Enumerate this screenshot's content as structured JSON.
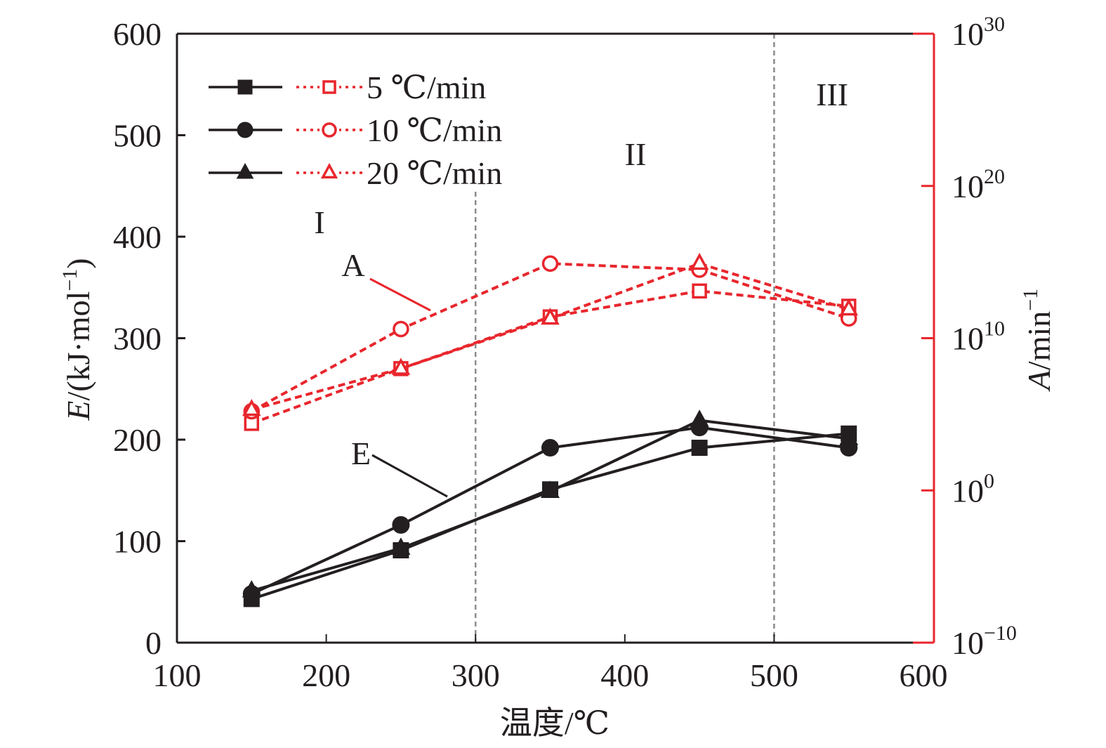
{
  "chart_data": {
    "type": "line",
    "title": "",
    "xlabel": "温度/℃",
    "ylabel": "E/(kJ·mol⁻¹)",
    "ylabel_right": "A/min⁻¹",
    "xlim": [
      100,
      600
    ],
    "ylim": [
      0,
      600
    ],
    "ylim_right_log10": [
      -10,
      30
    ],
    "x_ticks": [
      100,
      200,
      300,
      400,
      500,
      600
    ],
    "x_tick_labels": [
      "100",
      "200",
      "300",
      "400",
      "500",
      "600"
    ],
    "y_ticks": [
      0,
      100,
      200,
      300,
      400,
      500,
      600
    ],
    "y_tick_labels": [
      "0",
      "100",
      "200",
      "300",
      "400",
      "500",
      "600"
    ],
    "y_right_ticks_log10": [
      -10,
      0,
      10,
      20,
      30
    ],
    "y_right_tick_labels": [
      {
        "base": "10",
        "exp": "−10"
      },
      {
        "base": "10",
        "exp": "0"
      },
      {
        "base": "10",
        "exp": "10"
      },
      {
        "base": "10",
        "exp": "20"
      },
      {
        "base": "10",
        "exp": "30"
      }
    ],
    "grid": false,
    "x": [
      150,
      250,
      350,
      450,
      550
    ],
    "series": [
      {
        "name": "E 5 ℃/min",
        "axis": "left",
        "marker": "square",
        "filled": true,
        "color": "#231f20",
        "dash": "solid",
        "values": [
          43,
          91,
          151,
          192,
          206
        ]
      },
      {
        "name": "E 10 ℃/min",
        "axis": "left",
        "marker": "circle",
        "filled": true,
        "color": "#231f20",
        "dash": "solid",
        "values": [
          48,
          116,
          192,
          212,
          192
        ]
      },
      {
        "name": "E 20 ℃/min",
        "axis": "left",
        "marker": "triangle",
        "filled": true,
        "color": "#231f20",
        "dash": "solid",
        "values": [
          51,
          93,
          149,
          219,
          201
        ]
      },
      {
        "name": "A 5 ℃/min",
        "axis": "right",
        "marker": "square",
        "filled": false,
        "color": "#e8262d",
        "dash": "dashed",
        "values_log10": [
          4.4,
          8.0,
          11.4,
          13.1,
          12.1
        ]
      },
      {
        "name": "A 10 ℃/min",
        "axis": "right",
        "marker": "circle",
        "filled": false,
        "color": "#e8262d",
        "dash": "dashed",
        "values_log10": [
          5.2,
          10.6,
          14.9,
          14.5,
          11.3
        ]
      },
      {
        "name": "A 20 ℃/min",
        "axis": "right",
        "marker": "triangle",
        "filled": false,
        "color": "#e8262d",
        "dash": "dashed",
        "values_log10": [
          5.3,
          8.0,
          11.3,
          14.9,
          11.9
        ]
      }
    ],
    "legend": {
      "placement": "top-left",
      "entries": [
        {
          "label": "5 ℃/min",
          "marker": "square"
        },
        {
          "label": "10 ℃/min",
          "marker": "circle"
        },
        {
          "label": "20 ℃/min",
          "marker": "triangle"
        }
      ]
    },
    "region_dividers_x": [
      300,
      500
    ],
    "annotations": [
      {
        "text": "I",
        "kind": "region-label",
        "region": "below 300 ℃"
      },
      {
        "text": "II",
        "kind": "region-label",
        "region": "300–500 ℃"
      },
      {
        "text": "III",
        "kind": "region-label",
        "region": "above 500 ℃"
      },
      {
        "text": "A",
        "kind": "callout",
        "points_to": "A curves"
      },
      {
        "text": "E",
        "kind": "callout",
        "points_to": "E curves"
      }
    ],
    "colors": {
      "black": "#231f20",
      "red": "#e8262d",
      "divider": "#8c8c8c"
    }
  }
}
